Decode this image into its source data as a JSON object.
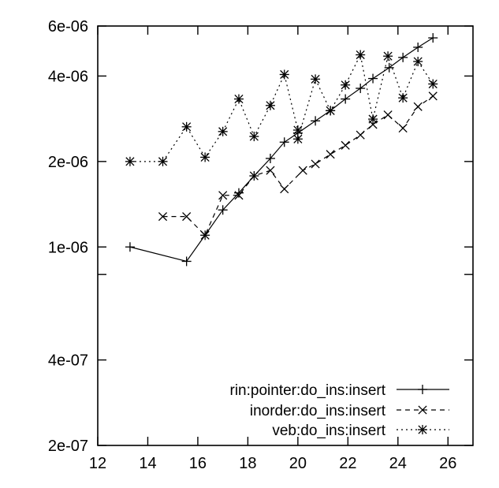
{
  "chart_data": {
    "type": "line",
    "title": "",
    "xlabel": "",
    "ylabel": "",
    "xlim": [
      12,
      27
    ],
    "ylim": [
      2e-07,
      6e-06
    ],
    "yscale": "log",
    "grid": false,
    "legend_position": "bottom-right",
    "x_ticks": [
      12,
      14,
      16,
      18,
      20,
      22,
      24,
      26
    ],
    "y_ticks": [
      {
        "value": 2e-07,
        "label": "2e-07"
      },
      {
        "value": 4e-07,
        "label": "4e-07"
      },
      {
        "value": 1e-06,
        "label": "1e-06"
      },
      {
        "value": 2e-06,
        "label": "2e-06"
      },
      {
        "value": 4e-06,
        "label": "4e-06"
      },
      {
        "value": 6e-06,
        "label": "6e-06"
      }
    ],
    "y_minor_ticks": [
      8e-07
    ],
    "series": [
      {
        "name": "rin:pointer:do_ins:insert",
        "marker": "plus",
        "dash": "solid",
        "points": [
          [
            13.29,
            1e-06
          ],
          [
            15.55,
            8.9e-07
          ],
          [
            16.29,
            1.1e-06
          ],
          [
            17.0,
            1.35e-06
          ],
          [
            17.64,
            1.55e-06
          ],
          [
            18.25,
            1.78e-06
          ],
          [
            18.9,
            2.05e-06
          ],
          [
            19.46,
            2.34e-06
          ],
          [
            20.0,
            2.52e-06
          ],
          [
            20.7,
            2.78e-06
          ],
          [
            21.3,
            3.02e-06
          ],
          [
            21.9,
            3.32e-06
          ],
          [
            22.5,
            3.62e-06
          ],
          [
            23.0,
            3.92e-06
          ],
          [
            23.65,
            4.28e-06
          ],
          [
            24.2,
            4.65e-06
          ],
          [
            24.8,
            5.05e-06
          ],
          [
            25.4,
            5.45e-06
          ]
        ]
      },
      {
        "name": "inorder:do_ins:insert",
        "marker": "x",
        "dash": "dashed",
        "points": [
          [
            14.6,
            1.28e-06
          ],
          [
            15.55,
            1.28e-06
          ],
          [
            16.29,
            1.1e-06
          ],
          [
            17.0,
            1.52e-06
          ],
          [
            17.64,
            1.52e-06
          ],
          [
            18.25,
            1.78e-06
          ],
          [
            18.9,
            1.86e-06
          ],
          [
            19.46,
            1.6e-06
          ],
          [
            20.2,
            1.86e-06
          ],
          [
            20.7,
            1.96e-06
          ],
          [
            21.3,
            2.12e-06
          ],
          [
            21.9,
            2.28e-06
          ],
          [
            22.5,
            2.48e-06
          ],
          [
            23.0,
            2.7e-06
          ],
          [
            23.6,
            2.92e-06
          ],
          [
            24.2,
            2.62e-06
          ],
          [
            24.8,
            3.12e-06
          ],
          [
            25.4,
            3.4e-06
          ]
        ]
      },
      {
        "name": "veb:do_ins:insert",
        "marker": "star",
        "dash": "dotted",
        "points": [
          [
            13.29,
            2e-06
          ],
          [
            14.6,
            2e-06
          ],
          [
            15.55,
            2.65e-06
          ],
          [
            16.29,
            2.07e-06
          ],
          [
            17.0,
            2.55e-06
          ],
          [
            17.64,
            3.32e-06
          ],
          [
            18.25,
            2.45e-06
          ],
          [
            18.9,
            3.15e-06
          ],
          [
            19.46,
            4.05e-06
          ],
          [
            20.0,
            2.58e-06
          ],
          [
            20.0,
            2.4e-06
          ],
          [
            20.7,
            3.9e-06
          ],
          [
            21.3,
            3.02e-06
          ],
          [
            21.9,
            3.72e-06
          ],
          [
            22.5,
            4.75e-06
          ],
          [
            23.0,
            2.82e-06
          ],
          [
            23.6,
            4.7e-06
          ],
          [
            24.2,
            3.35e-06
          ],
          [
            24.8,
            4.5e-06
          ],
          [
            25.4,
            3.75e-06
          ]
        ]
      }
    ]
  }
}
